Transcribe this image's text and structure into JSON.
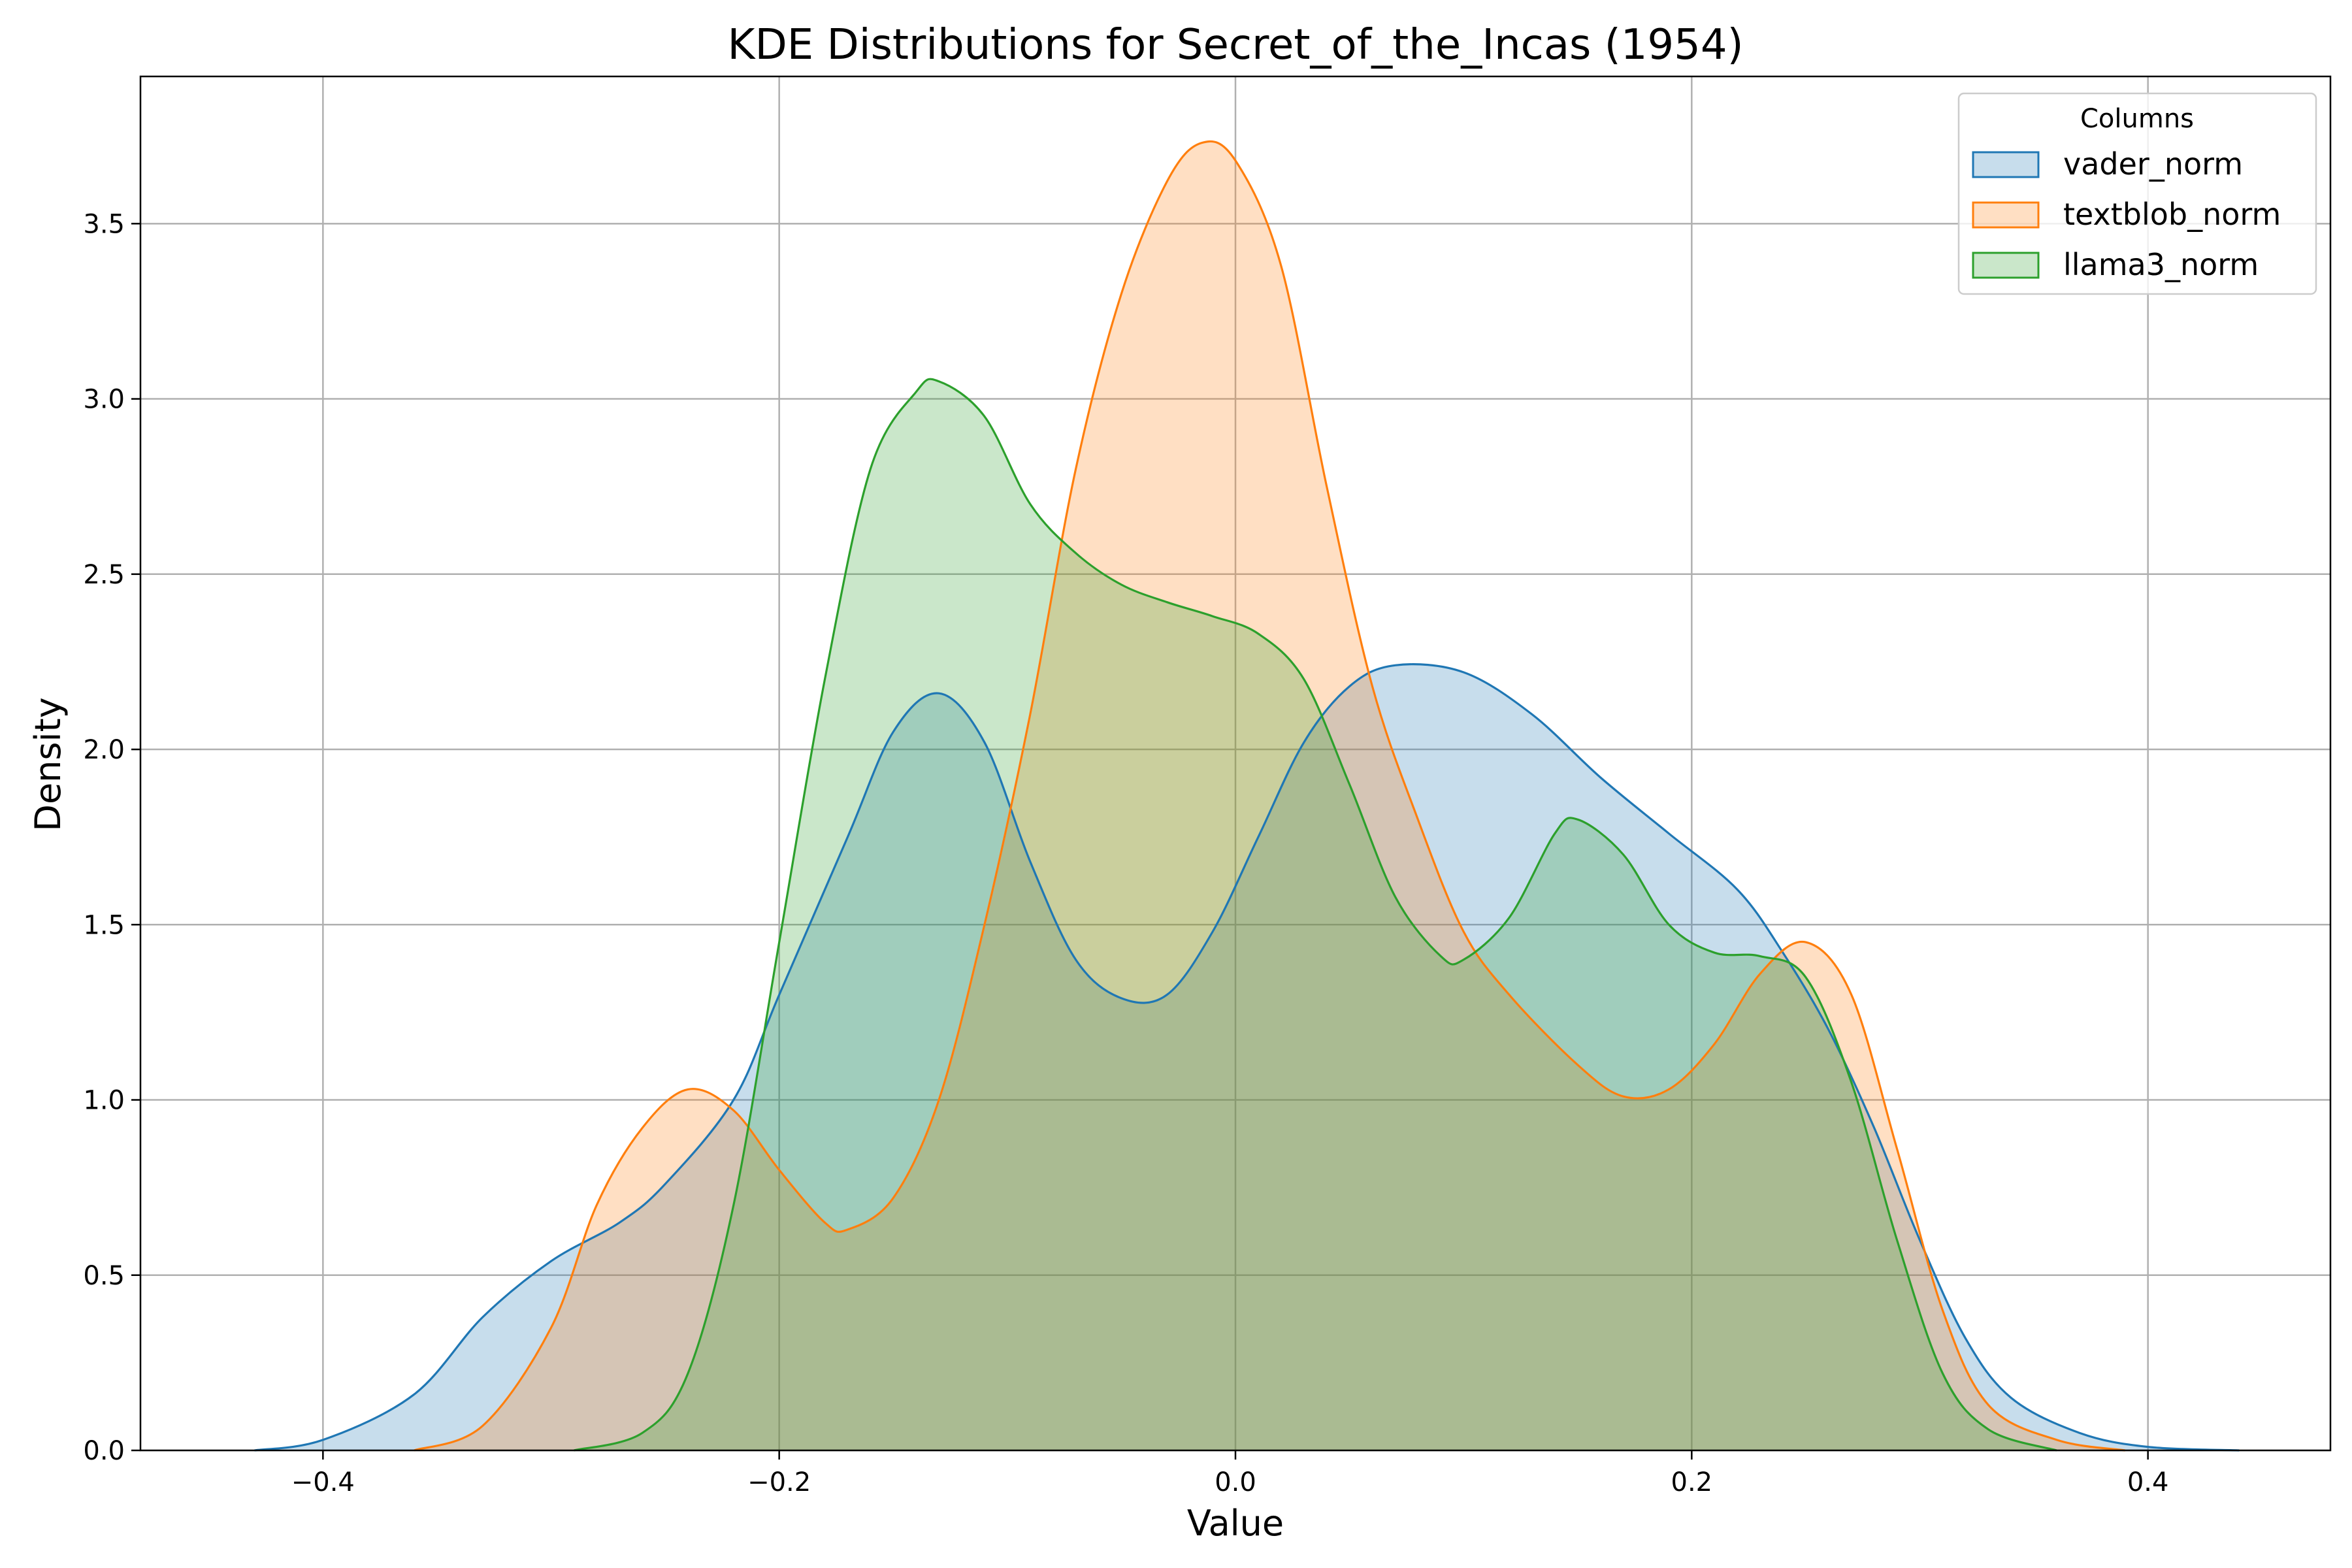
{
  "chart_data": {
    "type": "area",
    "title": "KDE Distributions for Secret_of_the_Incas (1954)",
    "xlabel": "Value",
    "ylabel": "Density",
    "xlim": [
      -0.48,
      0.48
    ],
    "ylim": [
      0.0,
      3.92
    ],
    "x_ticks": [
      -0.4,
      -0.2,
      0.0,
      0.2,
      0.4
    ],
    "x_tick_labels": [
      "−0.4",
      "−0.2",
      "0.0",
      "0.2",
      "0.4"
    ],
    "y_ticks": [
      0.0,
      0.5,
      1.0,
      1.5,
      2.0,
      2.5,
      3.0,
      3.5
    ],
    "y_tick_labels": [
      "0.0",
      "0.5",
      "1.0",
      "1.5",
      "2.0",
      "2.5",
      "3.0",
      "3.5"
    ],
    "grid": true,
    "legend": {
      "title": "Columns",
      "placement": "top-right"
    },
    "series": [
      {
        "name": "vader_norm",
        "color": "#1f77b4",
        "points": [
          [
            -0.43,
            0.0
          ],
          [
            -0.4,
            0.03
          ],
          [
            -0.36,
            0.16
          ],
          [
            -0.33,
            0.38
          ],
          [
            -0.3,
            0.54
          ],
          [
            -0.27,
            0.65
          ],
          [
            -0.25,
            0.76
          ],
          [
            -0.22,
            1.0
          ],
          [
            -0.2,
            1.3
          ],
          [
            -0.17,
            1.75
          ],
          [
            -0.15,
            2.05
          ],
          [
            -0.13,
            2.16
          ],
          [
            -0.11,
            2.02
          ],
          [
            -0.09,
            1.68
          ],
          [
            -0.07,
            1.4
          ],
          [
            -0.05,
            1.29
          ],
          [
            -0.03,
            1.3
          ],
          [
            -0.01,
            1.48
          ],
          [
            0.01,
            1.75
          ],
          [
            0.03,
            2.02
          ],
          [
            0.05,
            2.18
          ],
          [
            0.07,
            2.24
          ],
          [
            0.1,
            2.22
          ],
          [
            0.13,
            2.1
          ],
          [
            0.16,
            1.92
          ],
          [
            0.19,
            1.76
          ],
          [
            0.22,
            1.6
          ],
          [
            0.24,
            1.42
          ],
          [
            0.26,
            1.2
          ],
          [
            0.28,
            0.92
          ],
          [
            0.3,
            0.6
          ],
          [
            0.32,
            0.32
          ],
          [
            0.34,
            0.15
          ],
          [
            0.37,
            0.05
          ],
          [
            0.4,
            0.01
          ],
          [
            0.44,
            0.0
          ]
        ]
      },
      {
        "name": "textblob_norm",
        "color": "#ff7f0e",
        "points": [
          [
            -0.36,
            0.0
          ],
          [
            -0.33,
            0.07
          ],
          [
            -0.3,
            0.35
          ],
          [
            -0.28,
            0.7
          ],
          [
            -0.26,
            0.92
          ],
          [
            -0.24,
            1.03
          ],
          [
            -0.22,
            0.97
          ],
          [
            -0.2,
            0.8
          ],
          [
            -0.18,
            0.65
          ],
          [
            -0.17,
            0.63
          ],
          [
            -0.15,
            0.72
          ],
          [
            -0.13,
            1.0
          ],
          [
            -0.11,
            1.5
          ],
          [
            -0.09,
            2.1
          ],
          [
            -0.07,
            2.8
          ],
          [
            -0.05,
            3.3
          ],
          [
            -0.03,
            3.62
          ],
          [
            -0.015,
            3.73
          ],
          [
            0.0,
            3.68
          ],
          [
            0.02,
            3.38
          ],
          [
            0.04,
            2.75
          ],
          [
            0.06,
            2.18
          ],
          [
            0.08,
            1.8
          ],
          [
            0.1,
            1.48
          ],
          [
            0.12,
            1.3
          ],
          [
            0.15,
            1.1
          ],
          [
            0.17,
            1.01
          ],
          [
            0.19,
            1.03
          ],
          [
            0.21,
            1.16
          ],
          [
            0.23,
            1.36
          ],
          [
            0.25,
            1.45
          ],
          [
            0.27,
            1.3
          ],
          [
            0.29,
            0.86
          ],
          [
            0.31,
            0.4
          ],
          [
            0.33,
            0.13
          ],
          [
            0.36,
            0.03
          ],
          [
            0.39,
            0.0
          ]
        ]
      },
      {
        "name": "llama3_norm",
        "color": "#2ca02c",
        "points": [
          [
            -0.29,
            0.0
          ],
          [
            -0.26,
            0.05
          ],
          [
            -0.24,
            0.22
          ],
          [
            -0.22,
            0.7
          ],
          [
            -0.2,
            1.45
          ],
          [
            -0.18,
            2.2
          ],
          [
            -0.16,
            2.8
          ],
          [
            -0.14,
            3.02
          ],
          [
            -0.13,
            3.05
          ],
          [
            -0.11,
            2.95
          ],
          [
            -0.09,
            2.7
          ],
          [
            -0.07,
            2.56
          ],
          [
            -0.05,
            2.47
          ],
          [
            -0.03,
            2.42
          ],
          [
            -0.01,
            2.38
          ],
          [
            0.01,
            2.33
          ],
          [
            0.03,
            2.2
          ],
          [
            0.05,
            1.9
          ],
          [
            0.07,
            1.58
          ],
          [
            0.09,
            1.41
          ],
          [
            0.1,
            1.4
          ],
          [
            0.12,
            1.52
          ],
          [
            0.14,
            1.76
          ],
          [
            0.15,
            1.8
          ],
          [
            0.17,
            1.7
          ],
          [
            0.19,
            1.5
          ],
          [
            0.21,
            1.42
          ],
          [
            0.23,
            1.41
          ],
          [
            0.25,
            1.35
          ],
          [
            0.27,
            1.05
          ],
          [
            0.29,
            0.6
          ],
          [
            0.31,
            0.22
          ],
          [
            0.33,
            0.06
          ],
          [
            0.36,
            0.0
          ]
        ]
      }
    ]
  }
}
